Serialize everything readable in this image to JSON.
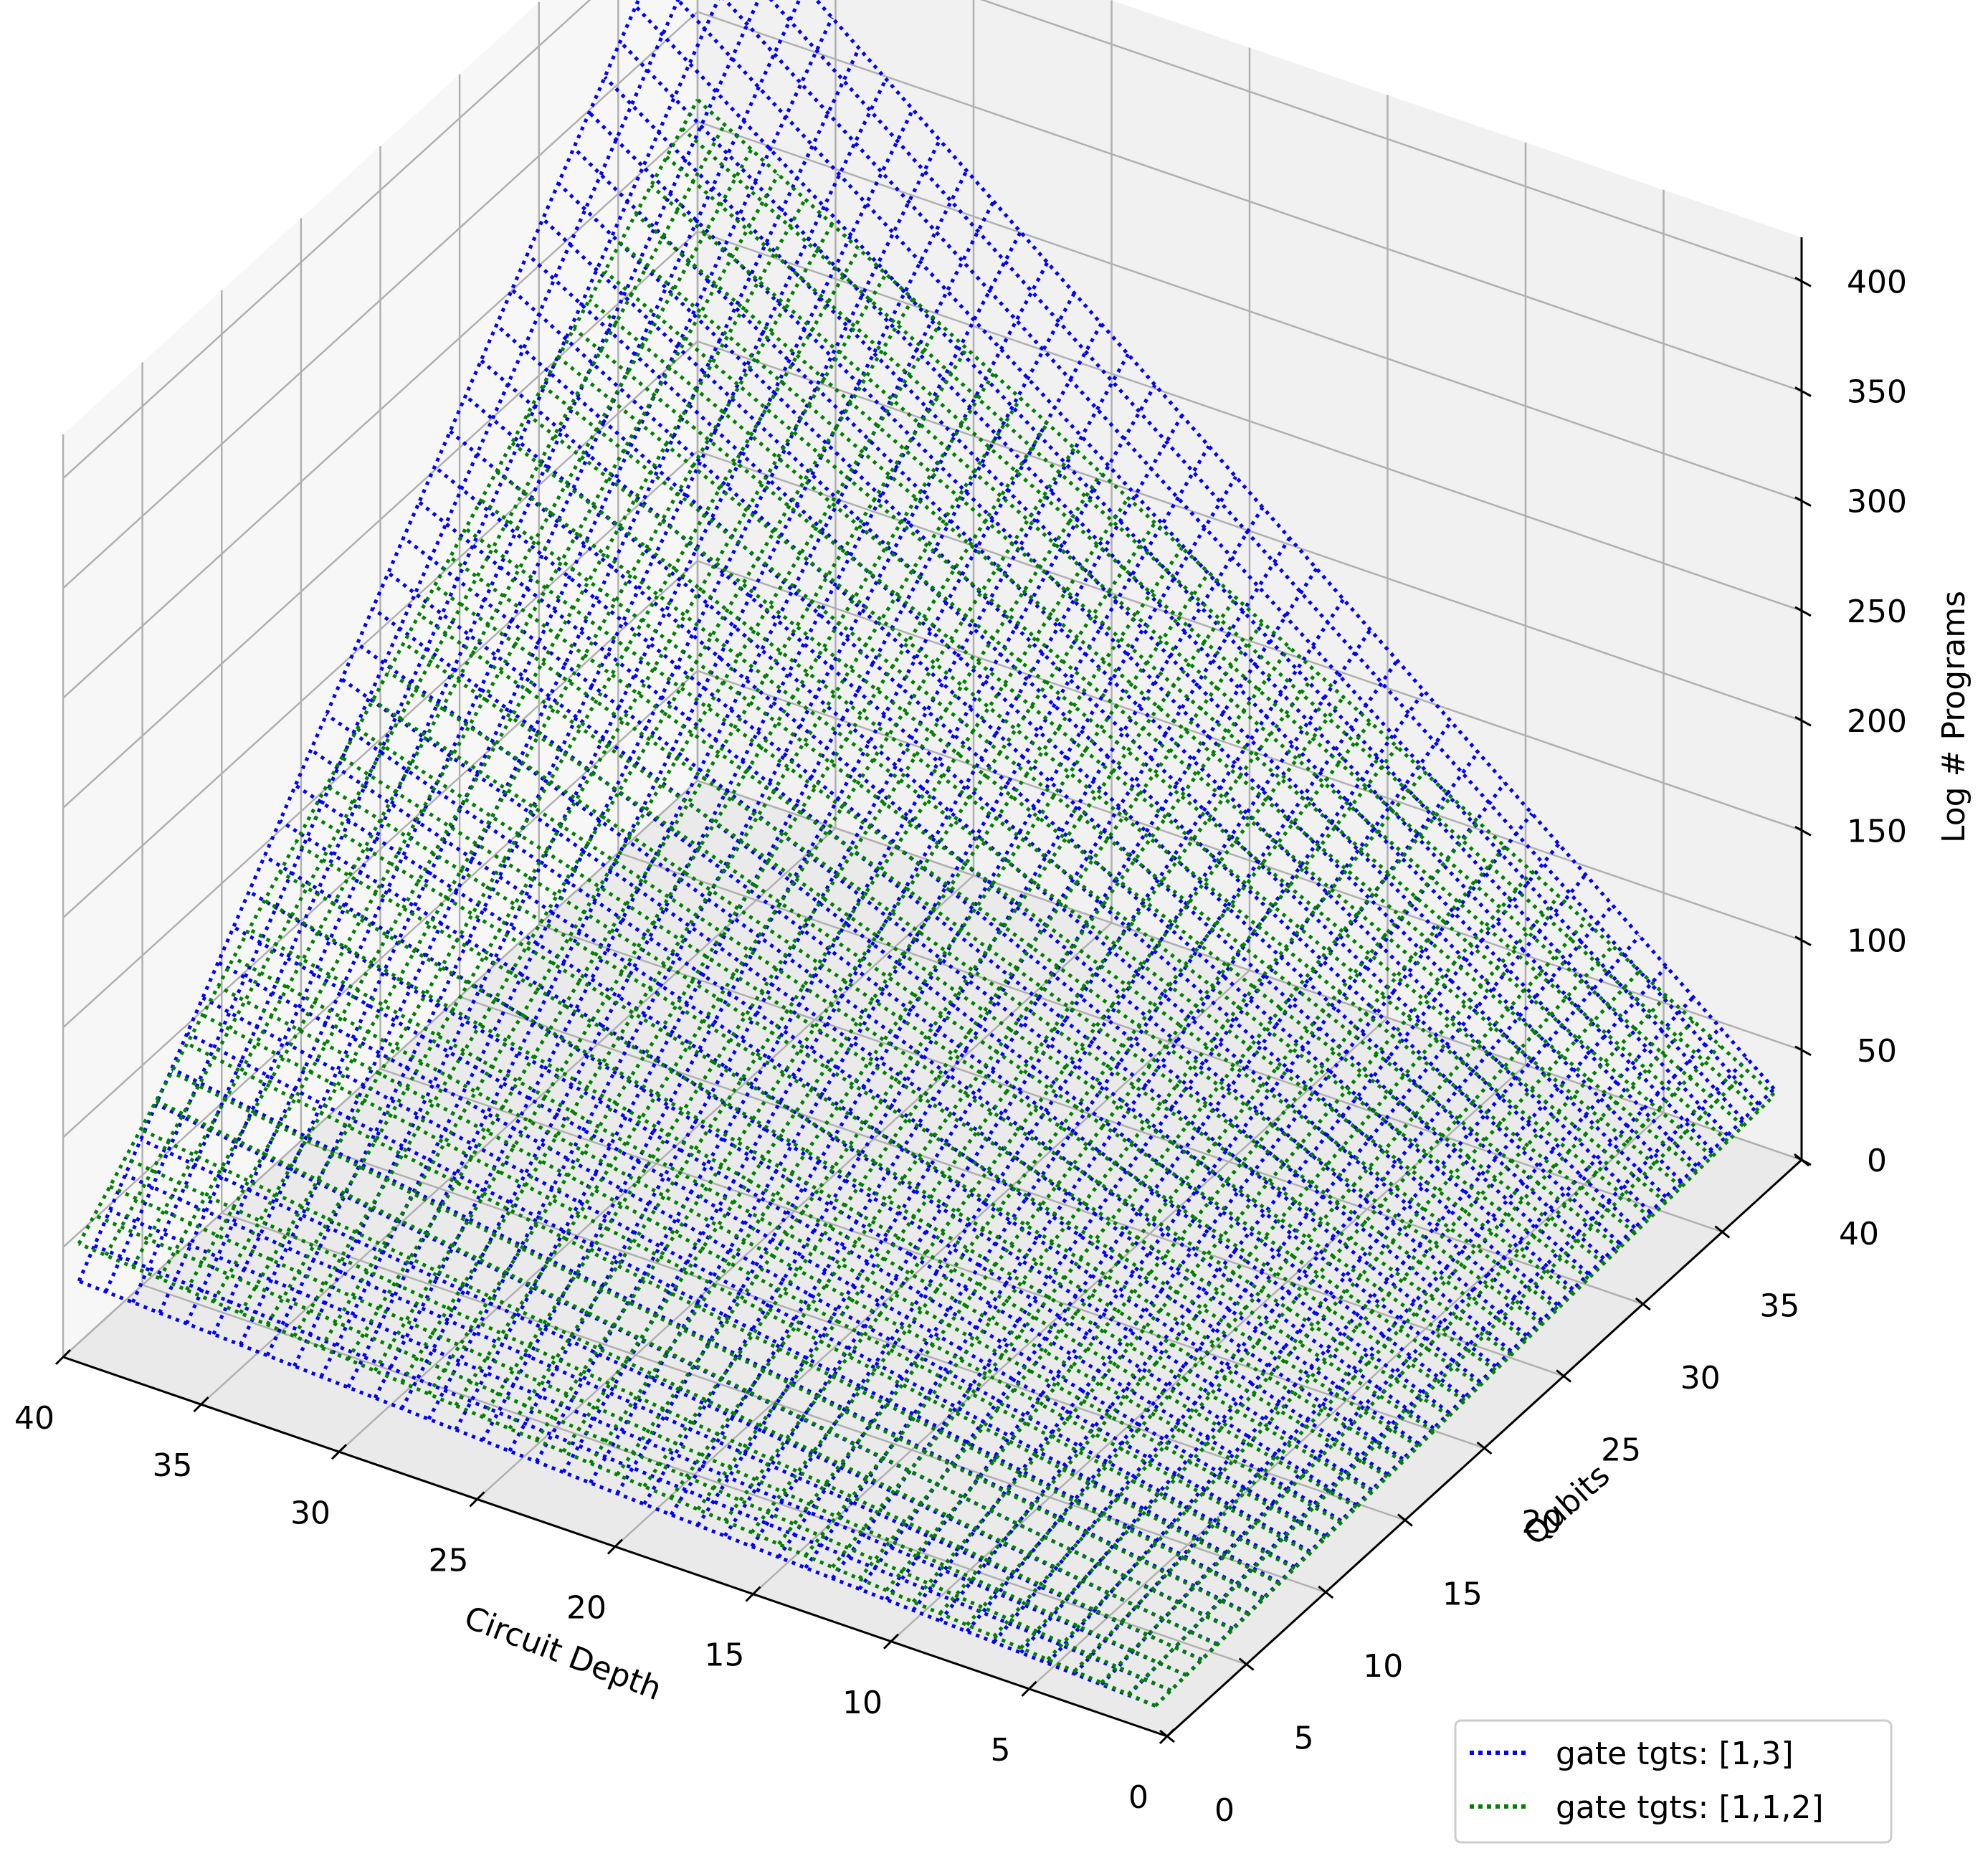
{
  "chart_data": {
    "type": "surface3d",
    "title": "",
    "xlabel": "Circuit Depth",
    "ylabel": "Qubits",
    "zlabel": "Log # Programs",
    "xlim": [
      0,
      40
    ],
    "ylim": [
      0,
      40
    ],
    "zlim": [
      0,
      420
    ],
    "x_ticks": [
      "0",
      "5",
      "10",
      "15",
      "20",
      "25",
      "30",
      "35",
      "40"
    ],
    "y_ticks": [
      "0",
      "5",
      "10",
      "15",
      "20",
      "25",
      "30",
      "35",
      "40"
    ],
    "z_ticks": [
      "0",
      "50",
      "100",
      "150",
      "200",
      "250",
      "300",
      "350",
      "400"
    ],
    "grid": true,
    "legend_position": "lower-right",
    "line_style": "dotted",
    "x_values": [
      1,
      40
    ],
    "y_values": [
      1,
      40
    ],
    "series": [
      {
        "name": "gate tgts: [1,3]",
        "color": "#0000ff",
        "z_corners": {
          "x1_y1": 3,
          "x40_y1": 28,
          "x1_y40": 28,
          "x40_y40": 417
        }
      },
      {
        "name": "gate tgts: [1,1,2]",
        "color": "#008000",
        "z_corners": {
          "x1_y1": 3,
          "x40_y1": 45,
          "x1_y40": 25,
          "x40_y40": 310
        }
      }
    ]
  }
}
